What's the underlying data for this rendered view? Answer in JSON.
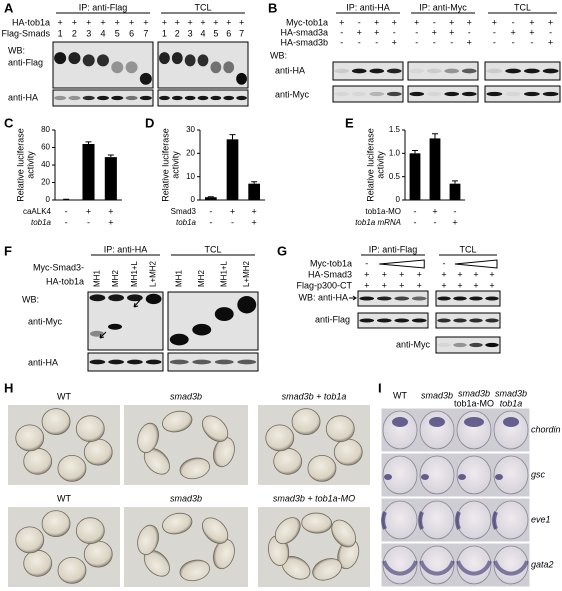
{
  "panels": {
    "A": {
      "label": "A",
      "headers": [
        "IP: anti-Flag",
        "TCL"
      ],
      "rows": [
        {
          "name": "HA-tob1a",
          "lanes": [
            "+",
            "+",
            "+",
            "+",
            "+",
            "+",
            "+"
          ]
        },
        {
          "name": "Flag-Smads",
          "lanes": [
            "1",
            "2",
            "3",
            "4",
            "5",
            "6",
            "7"
          ]
        }
      ],
      "wb": "WB:",
      "blots": [
        "anti-Flag",
        "anti-HA"
      ]
    },
    "B": {
      "label": "B",
      "headers": [
        "IP: anti-HA",
        "IP: anti-Myc",
        "TCL"
      ],
      "rows": [
        {
          "name": "Myc-tob1a",
          "lanes": [
            "+",
            "-",
            "+",
            "+"
          ]
        },
        {
          "name": "HA-smad3a",
          "lanes": [
            "-",
            "+",
            "+",
            "-"
          ]
        },
        {
          "name": "HA-smad3b",
          "lanes": [
            "-",
            "-",
            "-",
            "+"
          ]
        }
      ],
      "wb": "WB:",
      "blots": [
        "anti-HA",
        "anti-Myc"
      ]
    },
    "F": {
      "label": "F",
      "headers": [
        "IP: anti-HA",
        "TCL"
      ],
      "construct": "Myc-Smad3-",
      "lanes": [
        "MH1",
        "MH2",
        "MH1+L",
        "L+MH2"
      ],
      "row": "HA-tob1a",
      "wb": "WB:",
      "blots": [
        "anti-Myc",
        "anti-HA"
      ]
    },
    "G": {
      "label": "G",
      "headers": [
        "IP: anti-Flag",
        "TCL"
      ],
      "rows": [
        {
          "name": "Myc-tob1a",
          "lanes": [
            "-"
          ]
        },
        {
          "name": "HA-Smad3",
          "lanes": [
            "+",
            "+",
            "+",
            "+"
          ]
        },
        {
          "name": "Flag-p300-CT",
          "lanes": [
            "+",
            "+",
            "+",
            "+"
          ]
        }
      ],
      "blots": [
        "WB: anti-HA",
        "anti-Flag",
        "anti-Myc"
      ]
    },
    "H": {
      "label": "H",
      "rows": [
        [
          "WT",
          "smad3b",
          "smad3b + tob1a"
        ],
        [
          "WT",
          "smad3b",
          "smad3b + tob1a-MO"
        ]
      ]
    },
    "I": {
      "label": "I",
      "columns": [
        [
          "WT"
        ],
        [
          "smad3b"
        ],
        [
          "smad3b",
          "tob1a-MO"
        ],
        [
          "smad3b",
          "tob1a"
        ]
      ],
      "genes": [
        "chordin",
        "gsc",
        "eve1",
        "gata2"
      ]
    }
  },
  "chart_data": [
    {
      "type": "bar",
      "label": "C",
      "ylabel": [
        "Relative luciferase",
        "activity"
      ],
      "values": [
        0.5,
        64,
        49
      ],
      "errors": [
        0.3,
        2.5,
        2.5
      ],
      "color": "#000000",
      "ylim": [
        0,
        80
      ],
      "yticks": [
        0,
        20,
        40,
        60,
        80
      ],
      "conditions": [
        {
          "name": "caALK4",
          "signs": [
            "-",
            "+",
            "+"
          ]
        },
        {
          "name": "tob1a",
          "signs": [
            "-",
            "-",
            "+"
          ]
        }
      ]
    },
    {
      "type": "bar",
      "label": "D",
      "ylabel": [
        "Relative luciferase",
        "activity"
      ],
      "values": [
        1.2,
        26,
        7
      ],
      "errors": [
        0.2,
        2,
        0.8
      ],
      "color": "#000000",
      "ylim": [
        0,
        30
      ],
      "yticks": [
        0,
        10,
        20,
        30
      ],
      "conditions": [
        {
          "name": "Smad3",
          "signs": [
            "-",
            "+",
            "+"
          ]
        },
        {
          "name": "tob1a",
          "signs": [
            "-",
            "-",
            "+"
          ]
        }
      ]
    },
    {
      "type": "bar",
      "label": "E",
      "ylabel": [
        "Relative luciferase",
        "activity"
      ],
      "values": [
        1.0,
        1.32,
        0.35
      ],
      "errors": [
        0.06,
        0.1,
        0.06
      ],
      "color": "#000000",
      "ylim": [
        0,
        1.5
      ],
      "yticks": [
        0,
        0.5,
        {
          "value": 1,
          "label": "1.0"
        },
        1.5
      ],
      "conditions": [
        {
          "name": "tob1a-MO",
          "signs": [
            "-",
            "+",
            "-"
          ]
        },
        {
          "name": "tob1a mRNA",
          "signs": [
            "-",
            "-",
            "+"
          ]
        }
      ]
    }
  ]
}
